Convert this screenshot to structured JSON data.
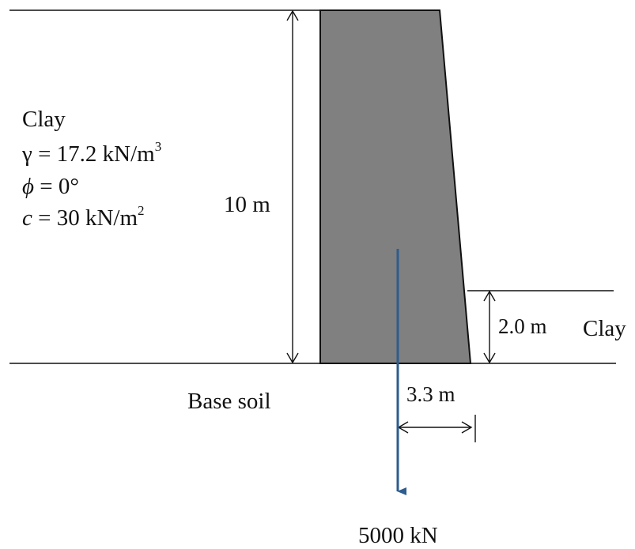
{
  "left_soil": {
    "name": "Clay",
    "unit_weight": {
      "symbol": "γ",
      "value": "= 17.2 kN/m",
      "exp": "3"
    },
    "friction_angle": {
      "symbol": "ϕ",
      "value": "= 0°"
    },
    "cohesion": {
      "symbol": "c",
      "value": "= 30 kN/m",
      "exp": "2"
    }
  },
  "wall_height_label": "10 m",
  "embedment_label": "2.0 m",
  "right_soil_label": "Clay",
  "base_soil_label": "Base soil",
  "eccentricity_label": "3.3 m",
  "load_label": "5000 kN",
  "colors": {
    "wall_fill": "#808080",
    "line": "#111111",
    "load_arrow": "#2e5d8e"
  }
}
